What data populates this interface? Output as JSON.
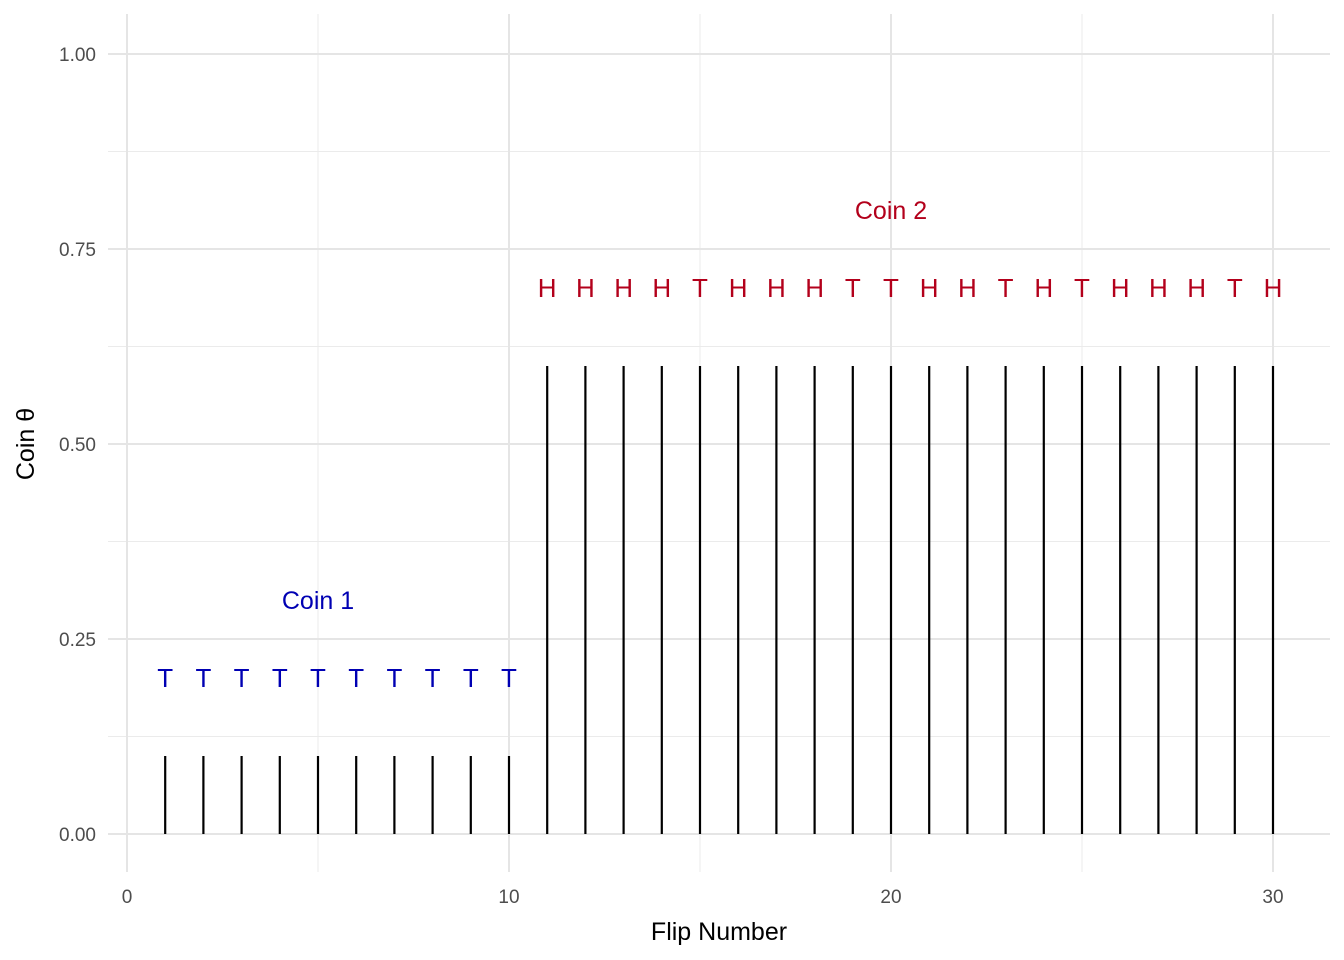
{
  "chart_data": {
    "type": "bar",
    "xlabel": "Flip Number",
    "ylabel": "Coin θ",
    "xlim": [
      0,
      31
    ],
    "ylim": [
      -0.1,
      1.05
    ],
    "x_ticks": [
      0,
      10,
      20,
      30
    ],
    "x_tick_labels": [
      "0",
      "10",
      "20",
      "30"
    ],
    "y_ticks": [
      0,
      0.25,
      0.5,
      0.75,
      1.0
    ],
    "y_tick_labels": [
      "0.00",
      "0.25",
      "0.50",
      "0.75",
      "1.00"
    ],
    "grid": true,
    "legend": "none",
    "coins": [
      {
        "label": "Coin 1",
        "theta": 0.1,
        "color": "#0000b3",
        "label_x": 5,
        "label_y": 0.3,
        "flips_x": [
          1,
          2,
          3,
          4,
          5,
          6,
          7,
          8,
          9,
          10
        ],
        "outcomes": [
          "T",
          "T",
          "T",
          "T",
          "T",
          "T",
          "T",
          "T",
          "T",
          "T"
        ],
        "outcome_y": 0.2
      },
      {
        "label": "Coin 2",
        "theta": 0.6,
        "color": "#b3001b",
        "label_x": 20,
        "label_y": 0.8,
        "flips_x": [
          11,
          12,
          13,
          14,
          15,
          16,
          17,
          18,
          19,
          20,
          21,
          22,
          23,
          24,
          25,
          26,
          27,
          28,
          29,
          30
        ],
        "outcomes": [
          "H",
          "H",
          "H",
          "H",
          "T",
          "H",
          "H",
          "H",
          "T",
          "T",
          "H",
          "H",
          "T",
          "H",
          "T",
          "H",
          "H",
          "H",
          "T",
          "H"
        ],
        "outcome_y": 0.7
      }
    ]
  }
}
